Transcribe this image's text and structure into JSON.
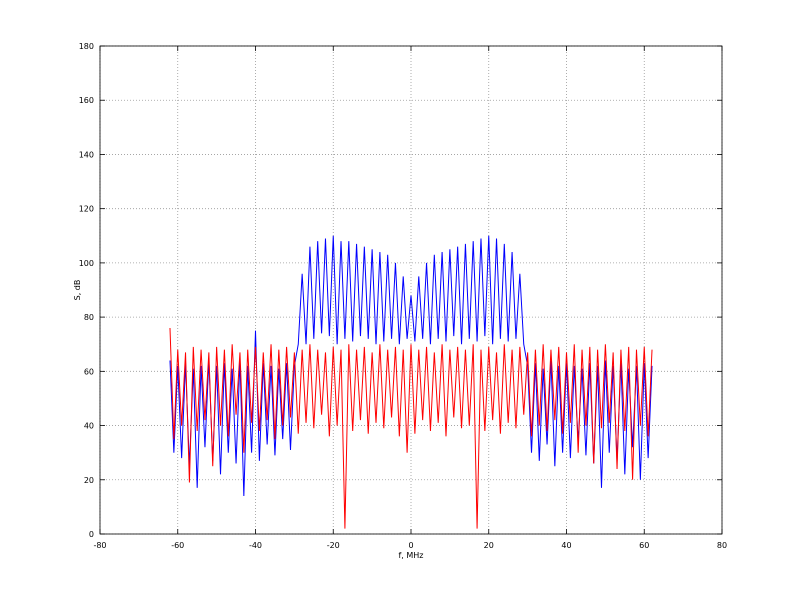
{
  "chart_data": {
    "type": "line",
    "xlabel": "f, MHz",
    "ylabel": "S, dB",
    "xlim": [
      -80,
      80
    ],
    "xticks": [
      -80,
      -60,
      -40,
      -20,
      0,
      20,
      40,
      60,
      80
    ],
    "ylim": [
      0,
      180
    ],
    "yticks": [
      0,
      20,
      40,
      60,
      80,
      100,
      120,
      140,
      160,
      180
    ],
    "grid": true,
    "x": [
      -62,
      -61,
      -60,
      -59,
      -58,
      -57,
      -56,
      -55,
      -54,
      -53,
      -52,
      -51,
      -50,
      -49,
      -48,
      -47,
      -46,
      -45,
      -44,
      -43,
      -42,
      -41,
      -40,
      -39,
      -38,
      -37,
      -36,
      -35,
      -34,
      -33,
      -32,
      -31,
      -30,
      -29,
      -28,
      -27,
      -26,
      -25,
      -24,
      -23,
      -22,
      -21,
      -20,
      -19,
      -18,
      -17,
      -16,
      -15,
      -14,
      -13,
      -12,
      -11,
      -10,
      -9,
      -8,
      -7,
      -6,
      -5,
      -4,
      -3,
      -2,
      -1,
      0,
      1,
      2,
      3,
      4,
      5,
      6,
      7,
      8,
      9,
      10,
      11,
      12,
      13,
      14,
      15,
      16,
      17,
      18,
      19,
      20,
      21,
      22,
      23,
      24,
      25,
      26,
      27,
      28,
      29,
      30,
      31,
      32,
      33,
      34,
      35,
      36,
      37,
      38,
      39,
      40,
      41,
      42,
      43,
      44,
      45,
      46,
      47,
      48,
      49,
      50,
      51,
      52,
      53,
      54,
      55,
      56,
      57,
      58,
      59,
      60,
      61,
      62
    ],
    "series": [
      {
        "color": "#0000ff",
        "values": [
          64,
          30,
          62,
          28,
          63,
          25,
          61,
          17,
          62,
          32,
          64,
          27,
          62,
          22,
          63,
          30,
          61,
          26,
          64,
          14,
          62,
          30,
          75,
          27,
          63,
          33,
          62,
          29,
          61,
          35,
          63,
          31,
          62,
          70,
          96,
          70,
          106,
          72,
          108,
          74,
          109,
          73,
          110,
          70,
          108,
          72,
          108,
          71,
          107,
          73,
          106,
          72,
          105,
          70,
          104,
          71,
          103,
          72,
          100,
          70,
          95,
          72,
          88,
          71,
          95,
          72,
          100,
          70,
          103,
          72,
          104,
          71,
          105,
          73,
          106,
          70,
          107,
          72,
          108,
          71,
          109,
          73,
          110,
          70,
          109,
          72,
          107,
          71,
          104,
          72,
          96,
          70,
          62,
          30,
          63,
          27,
          61,
          33,
          64,
          25,
          62,
          30,
          63,
          28,
          62,
          34,
          61,
          29,
          63,
          26,
          62,
          17,
          64,
          30,
          62,
          27,
          63,
          22,
          61,
          32,
          62,
          20,
          63,
          28,
          62
        ]
      },
      {
        "color": "#ff0000",
        "values": [
          76,
          35,
          68,
          40,
          67,
          19,
          69,
          38,
          68,
          42,
          67,
          25,
          69,
          40,
          68,
          36,
          70,
          44,
          67,
          30,
          68,
          41,
          69,
          38,
          67,
          42,
          70,
          35,
          68,
          40,
          69,
          43,
          67,
          37,
          68,
          41,
          70,
          39,
          68,
          44,
          67,
          36,
          69,
          40,
          68,
          2,
          70,
          38,
          68,
          42,
          69,
          37,
          67,
          41,
          70,
          39,
          68,
          43,
          69,
          36,
          68,
          30,
          70,
          37,
          68,
          42,
          69,
          38,
          67,
          41,
          70,
          36,
          68,
          43,
          69,
          39,
          68,
          40,
          70,
          2,
          68,
          38,
          69,
          42,
          67,
          37,
          70,
          41,
          68,
          39,
          69,
          44,
          67,
          36,
          68,
          40,
          70,
          38,
          68,
          42,
          69,
          37,
          67,
          41,
          70,
          30,
          68,
          40,
          69,
          26,
          68,
          39,
          70,
          41,
          67,
          24,
          68,
          38,
          69,
          20,
          68,
          40,
          69,
          36,
          68
        ]
      }
    ]
  }
}
